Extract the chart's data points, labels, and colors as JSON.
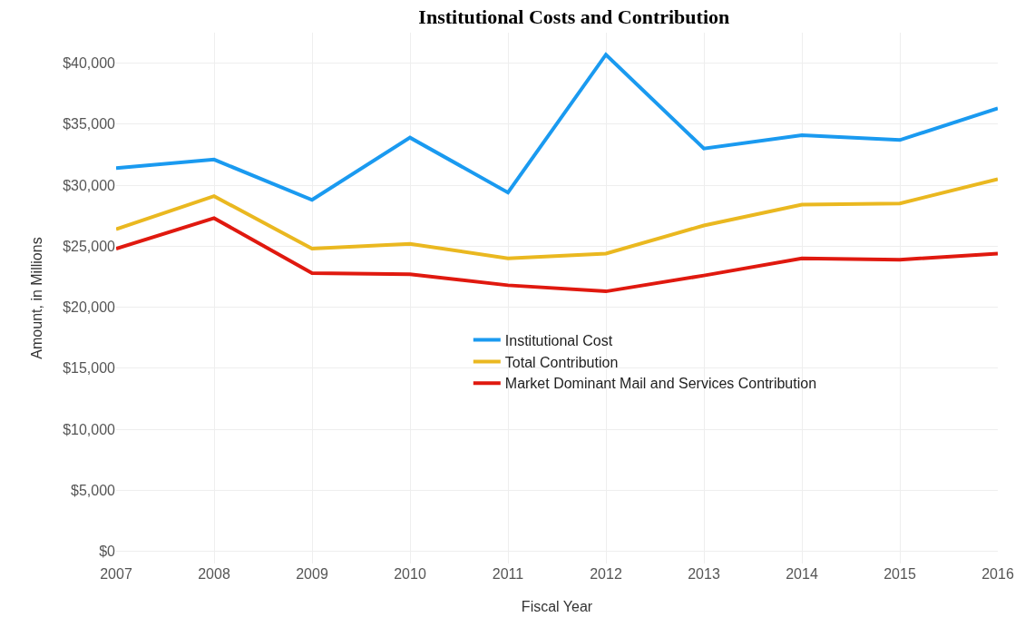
{
  "chart_data": {
    "type": "line",
    "title": "Institutional Costs and Contribution",
    "xlabel": "Fiscal Year",
    "ylabel": "Amount, in Millions",
    "x": [
      2007,
      2008,
      2009,
      2010,
      2011,
      2012,
      2013,
      2014,
      2015,
      2016
    ],
    "series": [
      {
        "name": "Institutional Cost",
        "color": "#1a9af0",
        "values": [
          31400,
          32100,
          28800,
          33900,
          29400,
          40700,
          33000,
          34100,
          33700,
          36300
        ]
      },
      {
        "name": "Total Contribution",
        "color": "#eab820",
        "values": [
          26400,
          29100,
          24800,
          25200,
          24000,
          24400,
          26700,
          28400,
          28500,
          30500
        ]
      },
      {
        "name": "Market Dominant Mail and Services Contribution",
        "color": "#e0190f",
        "values": [
          24800,
          27300,
          22800,
          22700,
          21800,
          21300,
          22600,
          24000,
          23900,
          24400
        ]
      }
    ],
    "xlim": [
      2007,
      2016
    ],
    "xticks": [
      2007,
      2008,
      2009,
      2010,
      2011,
      2012,
      2013,
      2014,
      2015,
      2016
    ],
    "ylim": [
      -1000,
      42500
    ],
    "yticks": [
      {
        "value": 0,
        "label": "$0"
      },
      {
        "value": 5000,
        "label": "$5,000"
      },
      {
        "value": 10000,
        "label": "$10,000"
      },
      {
        "value": 15000,
        "label": "$15,000"
      },
      {
        "value": 20000,
        "label": "$20,000"
      },
      {
        "value": 25000,
        "label": "$25,000"
      },
      {
        "value": 30000,
        "label": "$30,000"
      },
      {
        "value": 35000,
        "label": "$35,000"
      },
      {
        "value": 40000,
        "label": "$40,000"
      }
    ],
    "grid": true,
    "legend": "center",
    "marker": "none",
    "line_style": "solid"
  }
}
